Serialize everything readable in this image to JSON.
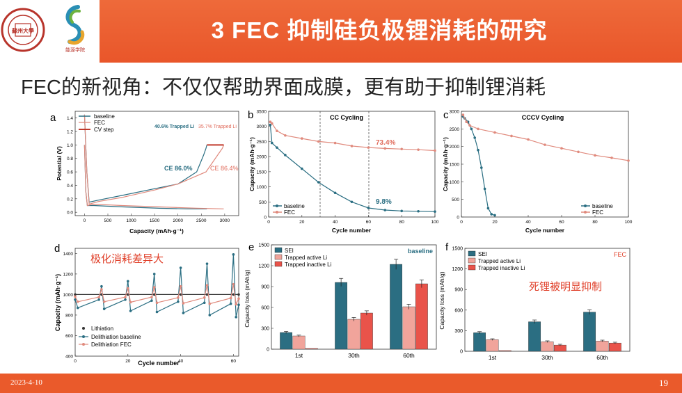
{
  "header": {
    "title": "3 FEC 抑制硅负极锂消耗的研究",
    "logo_left_text": "SOOCHOW UNIVERSITY",
    "logo_left_cn": "蘇州大學",
    "logo_right_text": "能源学院",
    "accent": "#e9562a"
  },
  "subtitle": "FEC的新视角：不仅仅帮助界面成膜，更有助于抑制锂消耗",
  "footer": {
    "date": "2023-4-10",
    "page": "19"
  },
  "panels": {
    "a": {
      "letter": "a",
      "legend": [
        "baseline",
        "FEC",
        "CV step"
      ],
      "xlabel": "Capacity (mAh·g⁻¹)",
      "ylabel": "Potential (V)",
      "xticks": [
        "0",
        "500",
        "1000",
        "1500",
        "2000",
        "2500",
        "3000"
      ],
      "yticks": [
        "0.0",
        "0.2",
        "0.4",
        "0.6",
        "0.8",
        "1.0",
        "1.2",
        "1.4"
      ],
      "ann1": "40.6% Trapped Li",
      "ann2": "35.7% Trapped Li",
      "ann3": "CE 86.0%",
      "ann4": "CE 86.4%"
    },
    "b": {
      "letter": "b",
      "title": "CC Cycling",
      "xlabel": "Cycle number",
      "ylabel": "Capacity (mAh·g⁻¹)",
      "xticks": [
        "0",
        "20",
        "40",
        "60",
        "80",
        "100"
      ],
      "yticks": [
        "0",
        "500",
        "1000",
        "1500",
        "2000",
        "2500",
        "3000",
        "3500"
      ],
      "ann_fec": "73.4%",
      "ann_base": "9.8%",
      "legend": [
        "baseline",
        "FEC"
      ]
    },
    "c": {
      "letter": "c",
      "title": "CCCV Cycling",
      "xlabel": "Cycle number",
      "ylabel": "Capacity (mAh·g⁻¹)",
      "xticks": [
        "0",
        "20",
        "40",
        "60",
        "80",
        "100"
      ],
      "yticks": [
        "0",
        "500",
        "1000",
        "1500",
        "2000",
        "2500",
        "3000"
      ],
      "legend": [
        "baseline",
        "FEC"
      ]
    },
    "d": {
      "letter": "d",
      "annotation": "极化消耗差异大",
      "xlabel": "Cycle number",
      "ylabel": "Capacity (mAh·g⁻¹)",
      "xticks": [
        "0",
        "20",
        "40",
        "60"
      ],
      "yticks": [
        "400",
        "600",
        "800",
        "1000",
        "1200",
        "1400"
      ],
      "legend": [
        "Lithiation",
        "Delithiation baseline",
        "Delithiation FEC"
      ]
    },
    "e": {
      "letter": "e",
      "tag": "baseline",
      "ylabel": "Capacity loss (mAh/g)",
      "yticks": [
        "0",
        "300",
        "600",
        "900",
        "1200",
        "1500"
      ],
      "categories": [
        "1st",
        "30th",
        "60th"
      ],
      "legend": [
        "SEI",
        "Trapped active Li",
        "Trapped inactive Li"
      ]
    },
    "f": {
      "letter": "f",
      "tag": "FEC",
      "annotation": "死锂被明显抑制",
      "ylabel": "Capacity loss (mAh/g)",
      "yticks": [
        "0",
        "300",
        "600",
        "900",
        "1200",
        "1500"
      ],
      "categories": [
        "1st",
        "30th",
        "60th"
      ],
      "legend": [
        "SEI",
        "Trapped active Li",
        "Trapped inactive Li"
      ]
    }
  },
  "chart_data": [
    {
      "type": "line",
      "panel": "a",
      "xlabel": "Capacity (mAh·g⁻¹)",
      "ylabel": "Potential (V)",
      "xlim": [
        -200,
        3300
      ],
      "ylim": [
        -0.05,
        1.5
      ],
      "series": [
        {
          "name": "baseline",
          "x": [
            0,
            50,
            100,
            300,
            800,
            1500,
            2000,
            2400,
            2550,
            2600,
            2620
          ],
          "y": [
            1.45,
            0.6,
            0.15,
            0.18,
            0.25,
            0.35,
            0.42,
            0.6,
            0.85,
            0.95,
            1.0
          ]
        },
        {
          "name": "FEC",
          "x": [
            0,
            50,
            100,
            300,
            800,
            1500,
            2000,
            2600,
            2850,
            2950,
            2980
          ],
          "y": [
            1.45,
            0.6,
            0.12,
            0.16,
            0.22,
            0.33,
            0.42,
            0.6,
            0.85,
            0.95,
            1.0
          ]
        },
        {
          "name": "baseline",
          "x": [
            0,
            30,
            60,
            200,
            800,
            1600,
            2200,
            2620
          ],
          "y": [
            1.0,
            0.3,
            0.1,
            0.1,
            0.08,
            0.06,
            0.05,
            0.05
          ]
        },
        {
          "name": "FEC",
          "x": [
            0,
            30,
            60,
            200,
            800,
            1600,
            2400,
            2980
          ],
          "y": [
            1.0,
            0.3,
            0.1,
            0.12,
            0.1,
            0.08,
            0.06,
            0.05
          ]
        },
        {
          "name": "CV step",
          "x": [
            2620,
            2980
          ],
          "y": [
            1.0,
            1.0
          ]
        }
      ]
    },
    {
      "type": "line",
      "panel": "b",
      "xlabel": "Cycle number",
      "ylabel": "Capacity (mAh·g⁻¹)",
      "xlim": [
        0,
        100
      ],
      "ylim": [
        0,
        3500
      ],
      "series": [
        {
          "name": "baseline",
          "x": [
            1,
            2,
            5,
            10,
            20,
            30,
            40,
            50,
            60,
            70,
            80,
            90,
            100
          ],
          "y": [
            3050,
            2450,
            2300,
            2050,
            1600,
            1150,
            800,
            500,
            300,
            230,
            200,
            190,
            180
          ]
        },
        {
          "name": "FEC",
          "x": [
            1,
            2,
            5,
            10,
            20,
            30,
            40,
            50,
            60,
            70,
            80,
            90,
            100
          ],
          "y": [
            3150,
            3100,
            2850,
            2700,
            2600,
            2500,
            2450,
            2350,
            2300,
            2270,
            2250,
            2230,
            2200
          ]
        }
      ]
    },
    {
      "type": "line",
      "panel": "c",
      "xlabel": "Cycle number",
      "ylabel": "Capacity (mAh·g⁻¹)",
      "xlim": [
        0,
        100
      ],
      "ylim": [
        0,
        3000
      ],
      "series": [
        {
          "name": "baseline",
          "x": [
            1,
            2,
            4,
            6,
            8,
            10,
            12,
            14,
            16,
            18,
            20
          ],
          "y": [
            2850,
            2800,
            2700,
            2500,
            2250,
            1900,
            1400,
            800,
            250,
            80,
            50
          ]
        },
        {
          "name": "FEC",
          "x": [
            1,
            3,
            5,
            10,
            20,
            30,
            40,
            50,
            60,
            70,
            80,
            90,
            100
          ],
          "y": [
            2900,
            2700,
            2600,
            2500,
            2400,
            2300,
            2200,
            2050,
            1950,
            1850,
            1750,
            1680,
            1600
          ]
        }
      ]
    },
    {
      "type": "line",
      "panel": "d",
      "xlabel": "Cycle number",
      "ylabel": "Capacity (mAh·g⁻¹)",
      "xlim": [
        0,
        62
      ],
      "ylim": [
        400,
        1450
      ],
      "series": [
        {
          "name": "Lithiation",
          "x": [
            0,
            10,
            20,
            30,
            40,
            50,
            60,
            62
          ],
          "y": [
            1000,
            1000,
            1000,
            1000,
            1000,
            1000,
            1000,
            1000
          ]
        },
        {
          "name": "Delithiation baseline",
          "x": [
            0,
            1,
            9,
            10,
            11,
            19,
            20,
            21,
            29,
            30,
            31,
            39,
            40,
            41,
            49,
            50,
            51,
            59,
            60,
            61,
            62
          ],
          "y": [
            950,
            870,
            950,
            1080,
            860,
            950,
            1130,
            840,
            940,
            1200,
            830,
            930,
            1260,
            820,
            920,
            1300,
            800,
            910,
            1390,
            780,
            900
          ]
        },
        {
          "name": "Delithiation FEC",
          "x": [
            0,
            1,
            9,
            10,
            11,
            19,
            20,
            21,
            29,
            30,
            31,
            39,
            40,
            41,
            49,
            50,
            51,
            59,
            60,
            61,
            62
          ],
          "y": [
            980,
            930,
            975,
            1050,
            930,
            975,
            1060,
            925,
            975,
            1070,
            920,
            970,
            1080,
            915,
            970,
            1090,
            910,
            965,
            1100,
            905,
            960
          ]
        }
      ]
    },
    {
      "type": "bar",
      "panel": "e",
      "categories": [
        "1st",
        "30th",
        "60th"
      ],
      "ylabel": "Capacity loss (mAh/g)",
      "ylim": [
        0,
        1500
      ],
      "series": [
        {
          "name": "SEI",
          "values": [
            240,
            960,
            1220
          ]
        },
        {
          "name": "Trapped active Li",
          "values": [
            190,
            430,
            610
          ]
        },
        {
          "name": "Trapped inactive Li",
          "values": [
            10,
            520,
            940
          ]
        }
      ]
    },
    {
      "type": "bar",
      "panel": "f",
      "categories": [
        "1st",
        "30th",
        "60th"
      ],
      "ylabel": "Capacity loss (mAh/g)",
      "ylim": [
        0,
        1500
      ],
      "series": [
        {
          "name": "SEI",
          "values": [
            270,
            430,
            570
          ]
        },
        {
          "name": "Trapped active Li",
          "values": [
            170,
            140,
            150
          ]
        },
        {
          "name": "Trapped inactive Li",
          "values": [
            10,
            90,
            120
          ]
        }
      ]
    }
  ]
}
